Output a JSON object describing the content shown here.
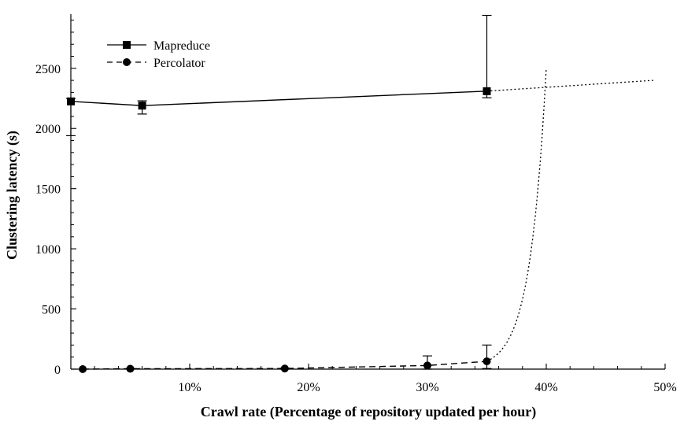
{
  "chart_data": {
    "type": "line",
    "xlabel": "Crawl rate (Percentage of repository updated per hour)",
    "ylabel": "Clustering latency (s)",
    "xlim": [
      0,
      50
    ],
    "ylim": [
      0,
      2950
    ],
    "x_ticks": [
      10,
      20,
      30,
      40,
      50
    ],
    "x_tick_labels": [
      "10%",
      "20%",
      "30%",
      "40%",
      "50%"
    ],
    "y_ticks": [
      0,
      500,
      1000,
      1500,
      2000,
      2500
    ],
    "y_tick_labels": [
      "0",
      "500",
      "1000",
      "1500",
      "2000",
      "2500"
    ],
    "legend_position": "top-left",
    "series": [
      {
        "name": "Mapreduce",
        "marker": "square",
        "line_style": "solid",
        "x": [
          0,
          6,
          35
        ],
        "y": [
          2225,
          2190,
          2310
        ],
        "err_low": [
          1940,
          2120,
          2255
        ],
        "err_high": [
          2250,
          2230,
          2940
        ]
      },
      {
        "name": "Percolator",
        "marker": "circle",
        "line_style": "dashed",
        "x": [
          1,
          5,
          18,
          30,
          35
        ],
        "y": [
          0,
          3,
          5,
          30,
          65
        ],
        "err_low": [
          0,
          0,
          0,
          0,
          5
        ],
        "err_high": [
          0,
          5,
          8,
          110,
          200
        ]
      }
    ],
    "extrapolations": [
      {
        "name": "Mapreduce trend",
        "line_style": "dotted",
        "x": [
          35,
          49
        ],
        "y": [
          2310,
          2400
        ]
      },
      {
        "name": "Percolator trend",
        "line_style": "dotted",
        "type": "exponential",
        "x_start": 35,
        "x_end": 40,
        "y_start": 65,
        "y_end": 2500
      }
    ]
  }
}
